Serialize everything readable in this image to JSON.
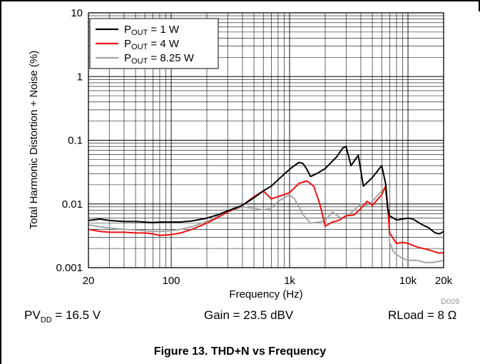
{
  "page": {
    "doc_id": "D009"
  },
  "conditions": {
    "pvdd": {
      "sym": "PV",
      "sub": "DD",
      "rest": " = 16.5 V"
    },
    "gain": "Gain = 23.5 dBV",
    "rload": "RLoad = 8 Ω"
  },
  "caption": "Figure 13. THD+N vs Frequency",
  "chart_data": {
    "type": "line",
    "title": "",
    "xlabel": "Frequency (Hz)",
    "ylabel": "Total Harmonic Distortion + Noise (%)",
    "x_scale": "log",
    "y_scale": "log",
    "xlim": [
      20,
      20000
    ],
    "ylim": [
      0.001,
      10
    ],
    "grid": true,
    "legend_position": "top-left",
    "x_ticks": [
      {
        "value": 20,
        "label": "20"
      },
      {
        "value": 100,
        "label": "100"
      },
      {
        "value": 1000,
        "label": "1k"
      },
      {
        "value": 10000,
        "label": "10k"
      },
      {
        "value": 20000,
        "label": "20k"
      }
    ],
    "y_ticks": [
      {
        "value": 0.001,
        "label": "0.001"
      },
      {
        "value": 0.01,
        "label": "0.01"
      },
      {
        "value": 0.1,
        "label": "0.1"
      },
      {
        "value": 1,
        "label": "1"
      },
      {
        "value": 10,
        "label": "10"
      }
    ],
    "series": [
      {
        "name_main": "P",
        "name_sub": "OUT",
        "name_rest": " = 1 W",
        "color": "#000000",
        "points": [
          [
            20,
            0.0055
          ],
          [
            25,
            0.0058
          ],
          [
            30,
            0.0055
          ],
          [
            40,
            0.0053
          ],
          [
            50,
            0.0053
          ],
          [
            60,
            0.0052
          ],
          [
            70,
            0.0051
          ],
          [
            80,
            0.0052
          ],
          [
            100,
            0.0052
          ],
          [
            120,
            0.0052
          ],
          [
            150,
            0.0054
          ],
          [
            200,
            0.006
          ],
          [
            250,
            0.0068
          ],
          [
            300,
            0.0078
          ],
          [
            400,
            0.0095
          ],
          [
            500,
            0.0125
          ],
          [
            600,
            0.016
          ],
          [
            700,
            0.019
          ],
          [
            800,
            0.024
          ],
          [
            1000,
            0.035
          ],
          [
            1100,
            0.04
          ],
          [
            1200,
            0.045
          ],
          [
            1300,
            0.043
          ],
          [
            1400,
            0.035
          ],
          [
            1500,
            0.027
          ],
          [
            1700,
            0.03
          ],
          [
            2000,
            0.036
          ],
          [
            2500,
            0.055
          ],
          [
            2800,
            0.075
          ],
          [
            3000,
            0.08
          ],
          [
            3300,
            0.04
          ],
          [
            3800,
            0.058
          ],
          [
            4200,
            0.019
          ],
          [
            5000,
            0.026
          ],
          [
            6000,
            0.04
          ],
          [
            6500,
            0.02
          ],
          [
            6700,
            0.009
          ],
          [
            7000,
            0.0065
          ],
          [
            8000,
            0.0056
          ],
          [
            9000,
            0.0058
          ],
          [
            10000,
            0.006
          ],
          [
            11000,
            0.0058
          ],
          [
            13000,
            0.0048
          ],
          [
            15000,
            0.0042
          ],
          [
            17000,
            0.0035
          ],
          [
            18500,
            0.0034
          ],
          [
            20000,
            0.0037
          ]
        ]
      },
      {
        "name_main": "P",
        "name_sub": "OUT",
        "name_rest": " = 4 W",
        "color": "#ee1111",
        "points": [
          [
            20,
            0.004
          ],
          [
            25,
            0.0037
          ],
          [
            30,
            0.0036
          ],
          [
            40,
            0.0036
          ],
          [
            50,
            0.0035
          ],
          [
            60,
            0.0035
          ],
          [
            70,
            0.0034
          ],
          [
            80,
            0.0032
          ],
          [
            100,
            0.0033
          ],
          [
            120,
            0.0035
          ],
          [
            150,
            0.004
          ],
          [
            200,
            0.005
          ],
          [
            250,
            0.0062
          ],
          [
            300,
            0.0075
          ],
          [
            400,
            0.0095
          ],
          [
            500,
            0.013
          ],
          [
            600,
            0.016
          ],
          [
            700,
            0.012
          ],
          [
            800,
            0.013
          ],
          [
            1000,
            0.015
          ],
          [
            1200,
            0.021
          ],
          [
            1400,
            0.023
          ],
          [
            1600,
            0.019
          ],
          [
            1800,
            0.01
          ],
          [
            2000,
            0.0045
          ],
          [
            2300,
            0.0052
          ],
          [
            2600,
            0.0055
          ],
          [
            3000,
            0.0065
          ],
          [
            3500,
            0.0067
          ],
          [
            4000,
            0.0085
          ],
          [
            4500,
            0.011
          ],
          [
            5000,
            0.0095
          ],
          [
            6000,
            0.014
          ],
          [
            6400,
            0.0185
          ],
          [
            6700,
            0.01
          ],
          [
            7000,
            0.0035
          ],
          [
            8000,
            0.0024
          ],
          [
            9000,
            0.0025
          ],
          [
            10000,
            0.0024
          ],
          [
            12000,
            0.0021
          ],
          [
            15000,
            0.0019
          ],
          [
            18000,
            0.0017
          ],
          [
            20000,
            0.0017
          ]
        ]
      },
      {
        "name_main": "P",
        "name_sub": "OUT",
        "name_rest": " = 8.25 W",
        "color": "#a6a6a6",
        "points": [
          [
            20,
            0.0047
          ],
          [
            25,
            0.0044
          ],
          [
            30,
            0.0042
          ],
          [
            40,
            0.004
          ],
          [
            50,
            0.0039
          ],
          [
            60,
            0.0038
          ],
          [
            70,
            0.0037
          ],
          [
            80,
            0.0037
          ],
          [
            100,
            0.0038
          ],
          [
            120,
            0.004
          ],
          [
            150,
            0.0044
          ],
          [
            200,
            0.0053
          ],
          [
            250,
            0.0065
          ],
          [
            300,
            0.0075
          ],
          [
            400,
            0.009
          ],
          [
            500,
            0.0085
          ],
          [
            600,
            0.008
          ],
          [
            700,
            0.0085
          ],
          [
            800,
            0.011
          ],
          [
            1000,
            0.014
          ],
          [
            1100,
            0.012
          ],
          [
            1200,
            0.009
          ],
          [
            1300,
            0.0068
          ],
          [
            1500,
            0.005
          ],
          [
            1800,
            0.0052
          ],
          [
            2000,
            0.0055
          ],
          [
            2300,
            0.0075
          ],
          [
            2700,
            0.006
          ],
          [
            3000,
            0.0063
          ],
          [
            3500,
            0.008
          ],
          [
            4000,
            0.01
          ],
          [
            4500,
            0.0095
          ],
          [
            5000,
            0.011
          ],
          [
            6000,
            0.016
          ],
          [
            6500,
            0.018
          ],
          [
            6800,
            0.009
          ],
          [
            7000,
            0.0025
          ],
          [
            7500,
            0.0018
          ],
          [
            8000,
            0.0016
          ],
          [
            9000,
            0.0014
          ],
          [
            10000,
            0.0013
          ],
          [
            12000,
            0.0013
          ],
          [
            14000,
            0.0012
          ],
          [
            16000,
            0.0012
          ],
          [
            18000,
            0.00125
          ],
          [
            20000,
            0.0013
          ]
        ]
      }
    ]
  }
}
